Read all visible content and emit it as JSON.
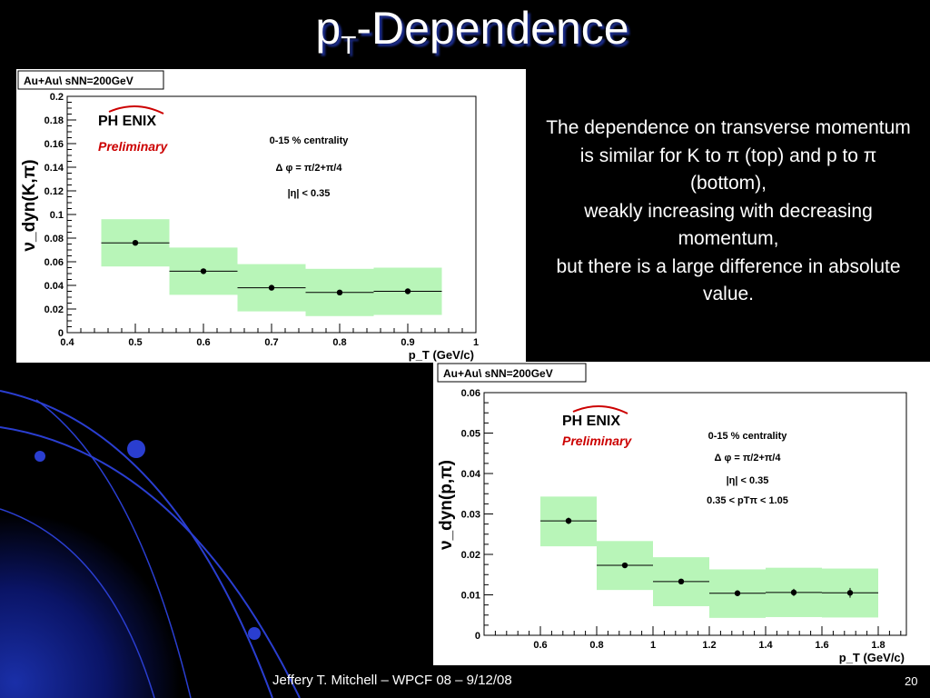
{
  "slide": {
    "title_main": "p",
    "title_sub": "T",
    "title_rest": "-Dependence",
    "description_lines": [
      "The dependence on transverse momentum",
      "is similar for K to π (top) and p to π (bottom),",
      "weakly increasing with decreasing momentum,",
      "but there is a large difference in absolute value."
    ],
    "footer": "Jeffery T. Mitchell – WPCF 08 – 9/12/08",
    "page_number": "20"
  },
  "colors": {
    "background": "#000000",
    "accent_blue": "#1c2d8c",
    "systematic_band": "#b8f5b8",
    "phenix_red": "#cc0000"
  },
  "chart_data": [
    {
      "type": "scatter",
      "legend": "Au+Au\\ sNN=200GeV",
      "logo": "PH ENIX",
      "preliminary": "Preliminary",
      "annotations": [
        "0-15 % centrality",
        "Δ φ = π/2+π/4",
        "|η| < 0.35"
      ],
      "ylabel": "ν_dyn(K,π)",
      "xlabel": "p_T (GeV/c)",
      "xlim": [
        0.4,
        1.0
      ],
      "ylim": [
        0,
        0.2
      ],
      "x_ticks": [
        "0.4",
        "0.5",
        "0.6",
        "0.7",
        "0.8",
        "0.9",
        "1"
      ],
      "y_ticks": [
        "0",
        "0.02",
        "0.04",
        "0.06",
        "0.08",
        "0.1",
        "0.12",
        "0.14",
        "0.16",
        "0.18",
        "0.2"
      ],
      "points": [
        {
          "x": 0.5,
          "y": 0.076,
          "xlo": 0.45,
          "xhi": 0.55,
          "syslo": 0.056,
          "syshi": 0.096
        },
        {
          "x": 0.6,
          "y": 0.052,
          "xlo": 0.55,
          "xhi": 0.65,
          "syslo": 0.032,
          "syshi": 0.072
        },
        {
          "x": 0.7,
          "y": 0.038,
          "xlo": 0.65,
          "xhi": 0.75,
          "syslo": 0.018,
          "syshi": 0.058
        },
        {
          "x": 0.8,
          "y": 0.034,
          "xlo": 0.75,
          "xhi": 0.85,
          "syslo": 0.014,
          "syshi": 0.054
        },
        {
          "x": 0.9,
          "y": 0.035,
          "xlo": 0.85,
          "xhi": 0.95,
          "syslo": 0.015,
          "syshi": 0.055
        }
      ]
    },
    {
      "type": "scatter",
      "legend": "Au+Au\\ sNN=200GeV",
      "logo": "PH ENIX",
      "preliminary": "Preliminary",
      "annotations": [
        "0-15 % centrality",
        "Δ φ = π/2+π/4",
        "|η| < 0.35",
        "0.35 < pTπ < 1.05"
      ],
      "ylabel": "ν_dyn(p,π)",
      "xlabel": "p_T (GeV/c)",
      "xlim": [
        0.4,
        1.9
      ],
      "ylim": [
        0,
        0.06
      ],
      "x_ticks": [
        "0.6",
        "0.8",
        "1",
        "1.2",
        "1.4",
        "1.6",
        "1.8"
      ],
      "y_ticks": [
        "0",
        "0.01",
        "0.02",
        "0.03",
        "0.04",
        "0.05",
        "0.06"
      ],
      "points": [
        {
          "x": 0.7,
          "y": 0.0283,
          "xlo": 0.6,
          "xhi": 0.8,
          "syslo": 0.022,
          "syshi": 0.0343,
          "err": 0.0008
        },
        {
          "x": 0.9,
          "y": 0.0173,
          "xlo": 0.8,
          "xhi": 1.0,
          "syslo": 0.0112,
          "syshi": 0.0233,
          "err": 0.0006
        },
        {
          "x": 1.1,
          "y": 0.0133,
          "xlo": 1.0,
          "xhi": 1.2,
          "syslo": 0.0072,
          "syshi": 0.0193,
          "err": 0.0006
        },
        {
          "x": 1.3,
          "y": 0.0104,
          "xlo": 1.2,
          "xhi": 1.4,
          "syslo": 0.0043,
          "syshi": 0.0163,
          "err": 0.0007
        },
        {
          "x": 1.5,
          "y": 0.0106,
          "xlo": 1.4,
          "xhi": 1.6,
          "syslo": 0.0045,
          "syshi": 0.0167,
          "err": 0.0009
        },
        {
          "x": 1.7,
          "y": 0.0105,
          "xlo": 1.6,
          "xhi": 1.8,
          "syslo": 0.0044,
          "syshi": 0.0165,
          "err": 0.0012
        }
      ]
    }
  ]
}
